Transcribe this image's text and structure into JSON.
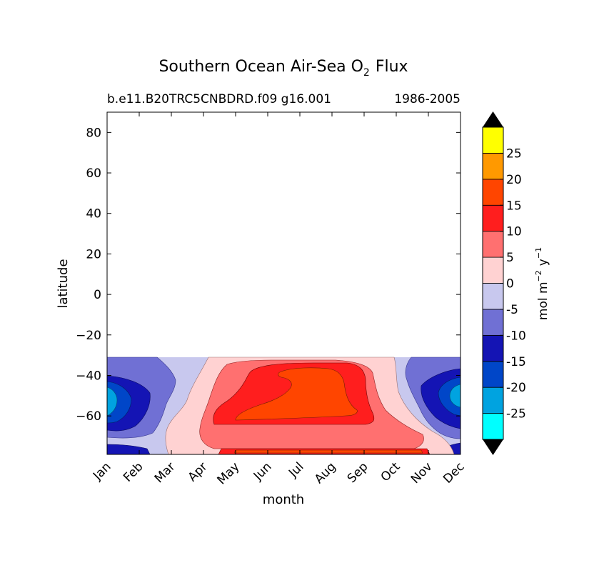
{
  "chart_data": {
    "type": "contour",
    "title": "Southern Ocean Air-Sea O",
    "title_subscript": "2",
    "title_suffix": "Flux",
    "subtitle_left": "b.e11.B20TRC5CNBDRD.f09 g16.001",
    "subtitle_right": "1986-2005",
    "xlabel": "month",
    "ylabel": "latitude",
    "x_ticks": [
      "Jan",
      "Feb",
      "Mar",
      "Apr",
      "May",
      "Jun",
      "Jul",
      "Aug",
      "Sep",
      "Oct",
      "Nov",
      "Dec"
    ],
    "y_ticks": [
      "80",
      "60",
      "40",
      "20",
      "0",
      "−20",
      "−40",
      "−60"
    ],
    "y_tick_values": [
      80,
      60,
      40,
      20,
      0,
      -20,
      -40,
      -60
    ],
    "ylim": [
      -79,
      90
    ],
    "data_lat_range": [
      -79,
      -31
    ],
    "colorbar": {
      "label_main": "mol m",
      "label_exp1": "−2",
      "label_mid": "y",
      "label_exp2": "−1",
      "extend": "both",
      "extend_color": "#000000",
      "tick_labels": [
        "25",
        "20",
        "15",
        "10",
        "5",
        "0",
        "-5",
        "-10",
        "-15",
        "-20",
        "-25"
      ],
      "levels": [
        -30,
        -25,
        -20,
        -15,
        -10,
        -5,
        0,
        5,
        10,
        15,
        20,
        25,
        30
      ],
      "colors": [
        "#00ffff",
        "#00a3e0",
        "#0046c8",
        "#1414b4",
        "#7070d4",
        "#c8c8ee",
        "#ffd2d2",
        "#ff7070",
        "#ff1e1e",
        "#ff4500",
        "#ff9900",
        "#ffff00"
      ]
    },
    "grid": false,
    "legend": "none"
  }
}
